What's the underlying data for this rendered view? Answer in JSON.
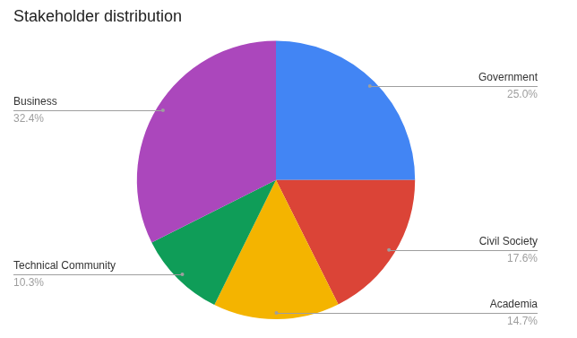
{
  "chart_data": {
    "type": "pie",
    "title": "Stakeholder distribution",
    "categories": [
      "Government",
      "Civil Society",
      "Academia",
      "Technical Community",
      "Business"
    ],
    "values": [
      25.0,
      17.6,
      14.7,
      10.3,
      32.4
    ],
    "value_labels": [
      "25.0%",
      "17.6%",
      "14.7%",
      "10.3%",
      "32.4%"
    ],
    "colors": [
      "#4285f4",
      "#db4437",
      "#f4b400",
      "#0f9d58",
      "#ab47bc"
    ],
    "data_labels": true
  }
}
